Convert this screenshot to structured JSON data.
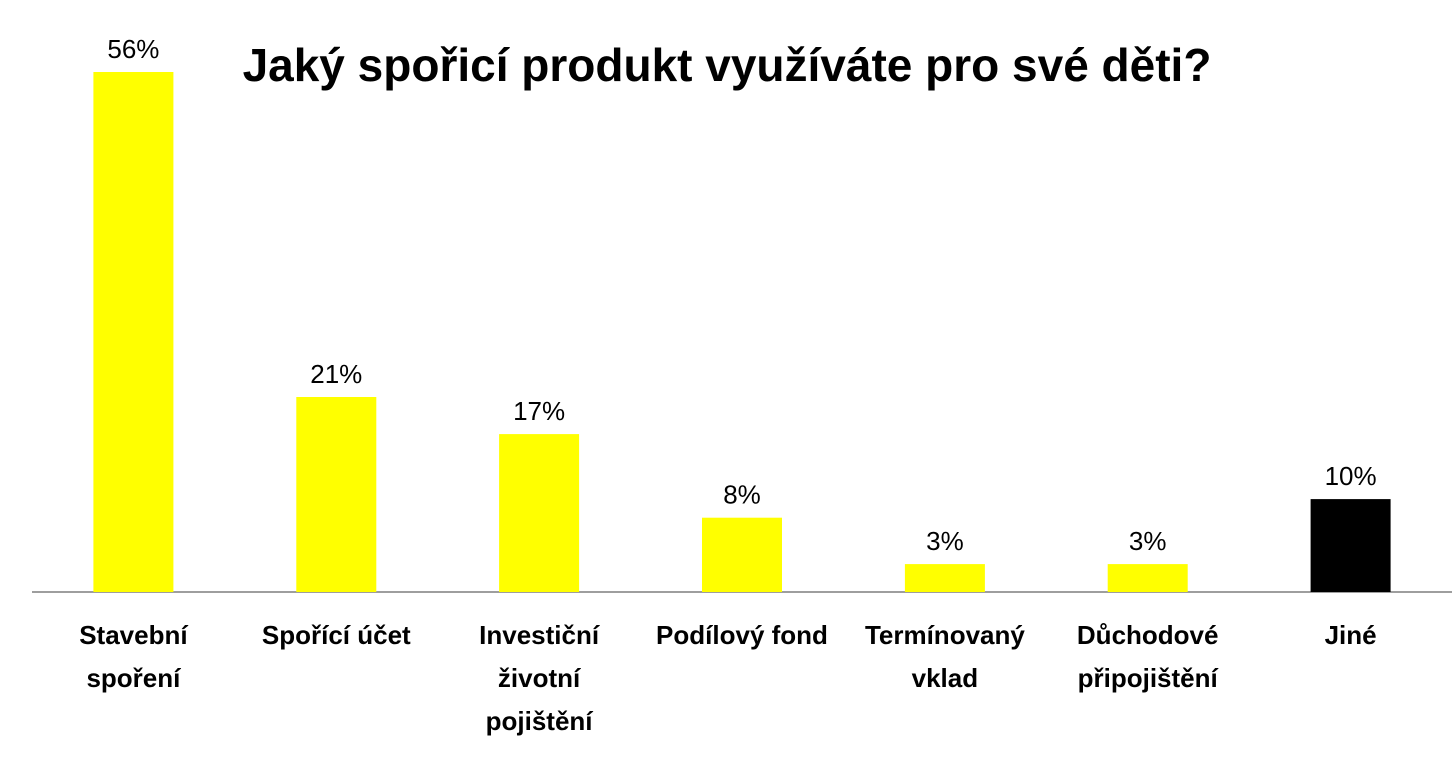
{
  "chart_data": {
    "type": "bar",
    "title": "Jaký spořicí produkt využíváte pro své děti?",
    "xlabel": "",
    "ylabel": "",
    "ylim": [
      0,
      56
    ],
    "grid": false,
    "legend": "none",
    "categories": [
      [
        "Stavební",
        "spoření"
      ],
      [
        "Spořící účet"
      ],
      [
        "Investiční",
        "životní",
        "pojištění"
      ],
      [
        "Podílový fond"
      ],
      [
        "Termínovaný",
        "vklad"
      ],
      [
        "Důchodové",
        "připojištění"
      ],
      [
        "Jiné"
      ]
    ],
    "values": [
      56,
      21,
      17,
      8,
      3,
      3,
      10
    ],
    "data_labels": [
      "56%",
      "21%",
      "17%",
      "8%",
      "3%",
      "3%",
      "10%"
    ],
    "colors": [
      "#ffff00",
      "#ffff00",
      "#ffff00",
      "#ffff00",
      "#ffff00",
      "#ffff00",
      "#000000"
    ],
    "axis_color": "#7f7f7f"
  }
}
